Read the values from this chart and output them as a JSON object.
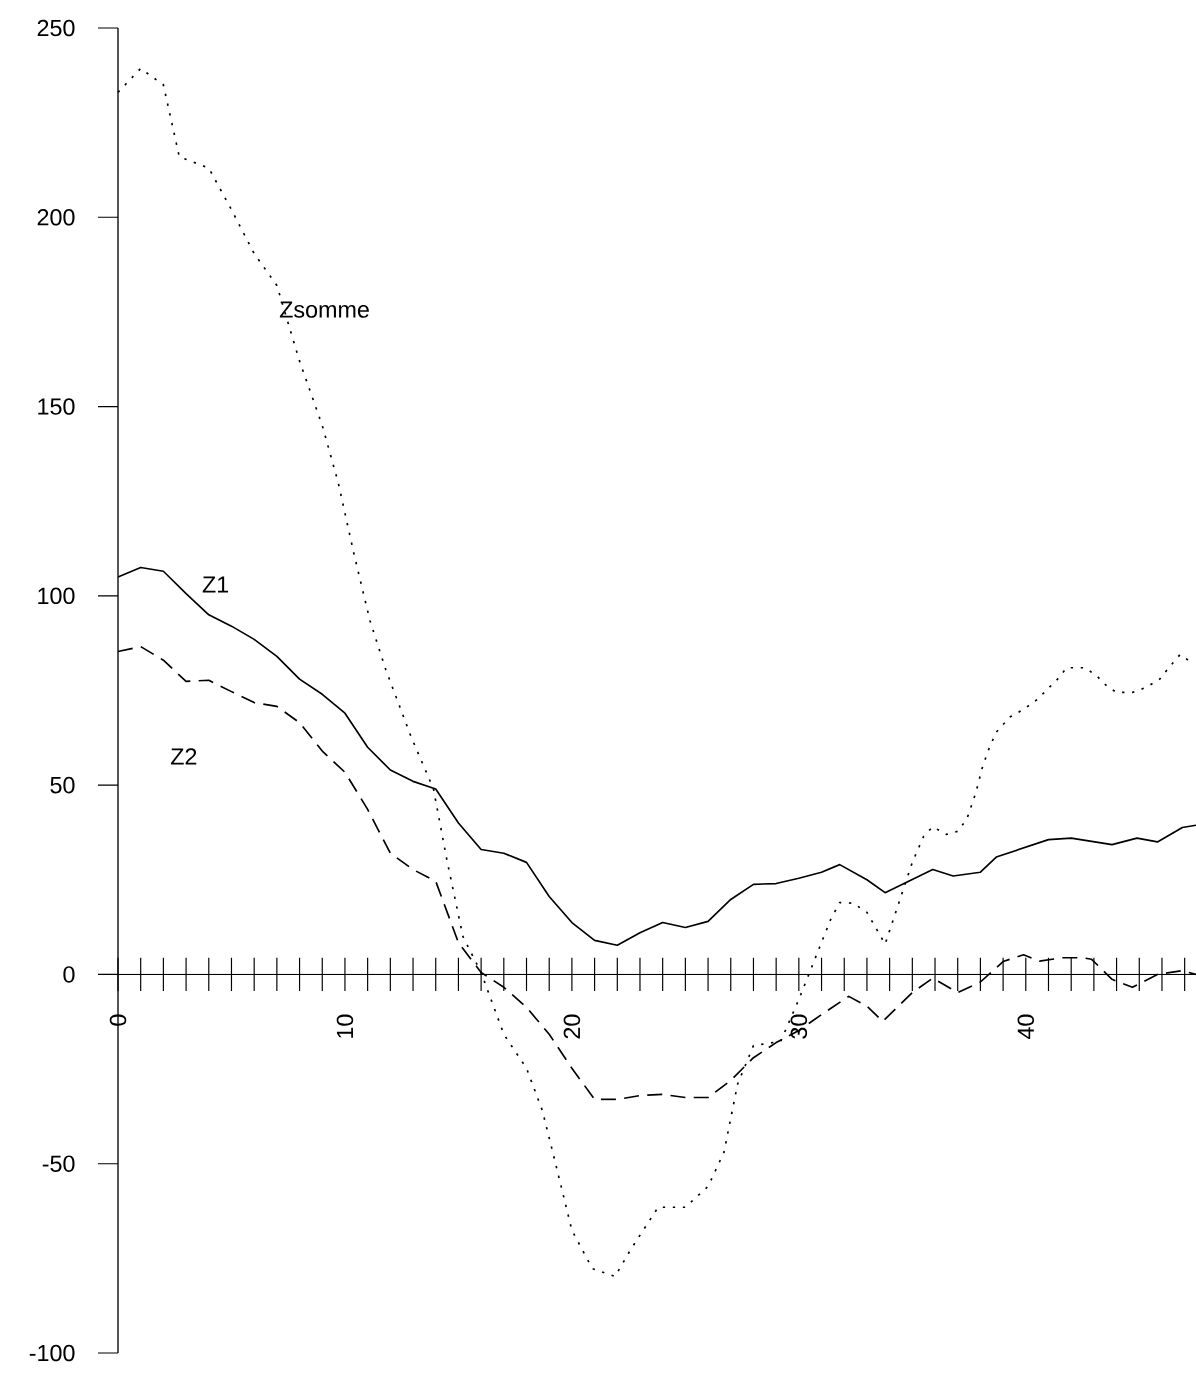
{
  "chart_data": {
    "type": "line",
    "xlim": [
      0,
      47.5
    ],
    "ylim": [
      -100,
      250
    ],
    "xticks": [
      0,
      10,
      20,
      30,
      40
    ],
    "yticks": [
      -100,
      -50,
      0,
      50,
      100,
      150,
      200,
      250
    ],
    "grid": false,
    "legend": false,
    "series": [
      {
        "name": "Z1",
        "color": "#000000",
        "line_style": "solid",
        "x": [
          0,
          1,
          2,
          3,
          4,
          5,
          6,
          7,
          8,
          9,
          10,
          11,
          12,
          13,
          14,
          15,
          16,
          17,
          18,
          19,
          20,
          21,
          22,
          23,
          24,
          25,
          26,
          27,
          28,
          29,
          30,
          31,
          31.8,
          33,
          33.8,
          35.9,
          36.8,
          38,
          38.7,
          41,
          42,
          43.8,
          44.9,
          45.8,
          46.9,
          47.5
        ],
        "values": [
          105,
          107.5,
          106.5,
          100.6,
          95,
          92,
          88.5,
          84,
          78,
          74,
          69,
          60,
          54,
          51,
          49,
          40,
          33,
          32,
          29.6,
          20.6,
          13.7,
          9,
          7.7,
          11,
          13.7,
          12.4,
          14,
          19.8,
          23.8,
          24,
          25.4,
          27,
          29,
          25,
          21.6,
          27.7,
          26,
          27,
          31,
          35.6,
          36,
          34.3,
          36,
          35,
          38.8,
          39.4
        ]
      },
      {
        "name": "Z2",
        "color": "#000000",
        "line_style": "dashed",
        "x": [
          0,
          1,
          2,
          3,
          4,
          5,
          6,
          7,
          8,
          9,
          10,
          11,
          12,
          13,
          14,
          15,
          16,
          17,
          18,
          19,
          20,
          21,
          22,
          23,
          24,
          25,
          26,
          27,
          28,
          29,
          30,
          31,
          32.2,
          33,
          33.7,
          35,
          35.9,
          37,
          38,
          39,
          39.9,
          40.6,
          41.6,
          42.5,
          42.9,
          43.8,
          44.7,
          45.8,
          46.9,
          47.5
        ],
        "values": [
          85.3,
          86.6,
          83,
          77.4,
          77.7,
          74.7,
          71.8,
          70.8,
          66.5,
          59,
          53.4,
          43.6,
          32,
          27.7,
          24.6,
          8.4,
          0.5,
          -3.4,
          -8.7,
          -15.8,
          -24.8,
          -33,
          -33,
          -32,
          -31.7,
          -32.5,
          -32.5,
          -28,
          -22,
          -18,
          -14.8,
          -10.6,
          -5.8,
          -8.4,
          -12.4,
          -4.8,
          -1,
          -4.8,
          -2,
          3.4,
          5.2,
          3.5,
          4.4,
          4.4,
          4,
          -1.3,
          -3.4,
          0,
          1,
          0
        ]
      },
      {
        "name": "Zsomme",
        "color": "#000000",
        "line_style": "dotted",
        "x": [
          0,
          1,
          2,
          2.7,
          4,
          5,
          6,
          7,
          8,
          9,
          9.7,
          10.4,
          11.1,
          11.8,
          12.9,
          13.9,
          14.5,
          15.2,
          16,
          17,
          18,
          18.7,
          19.2,
          20,
          20.9,
          21.9,
          22.6,
          23.8,
          25,
          26,
          26.7,
          27.3,
          28,
          29.2,
          30,
          31.4,
          31.8,
          32.4,
          33,
          33.8,
          35,
          35.5,
          35.9,
          36.5,
          37,
          37.4,
          37.8,
          38.1,
          38.4,
          38.7,
          39.3,
          39.9,
          40.5,
          40.9,
          41.4,
          41.8,
          42.6,
          43.1,
          43.6,
          44,
          44.7,
          45.3,
          45.9,
          46.3,
          46.8,
          47.4
        ],
        "values": [
          233,
          239.3,
          235,
          216,
          213,
          202,
          190.4,
          182,
          162,
          145,
          130,
          111,
          93.5,
          80.5,
          63,
          49,
          30,
          10,
          0.5,
          -15.8,
          -24.8,
          -36,
          -48,
          -67.6,
          -77.7,
          -79.8,
          -72.6,
          -61.5,
          -61.5,
          -56,
          -47,
          -29,
          -18.8,
          -17.7,
          -6.6,
          14.5,
          19,
          18.8,
          16.4,
          8,
          29.6,
          36.5,
          39,
          37,
          37.8,
          41,
          48,
          55,
          60,
          64,
          68,
          70,
          72.6,
          75,
          78,
          81,
          81,
          79,
          76,
          74.5,
          74.5,
          75.8,
          78,
          81,
          84.5,
          82
        ]
      }
    ]
  }
}
